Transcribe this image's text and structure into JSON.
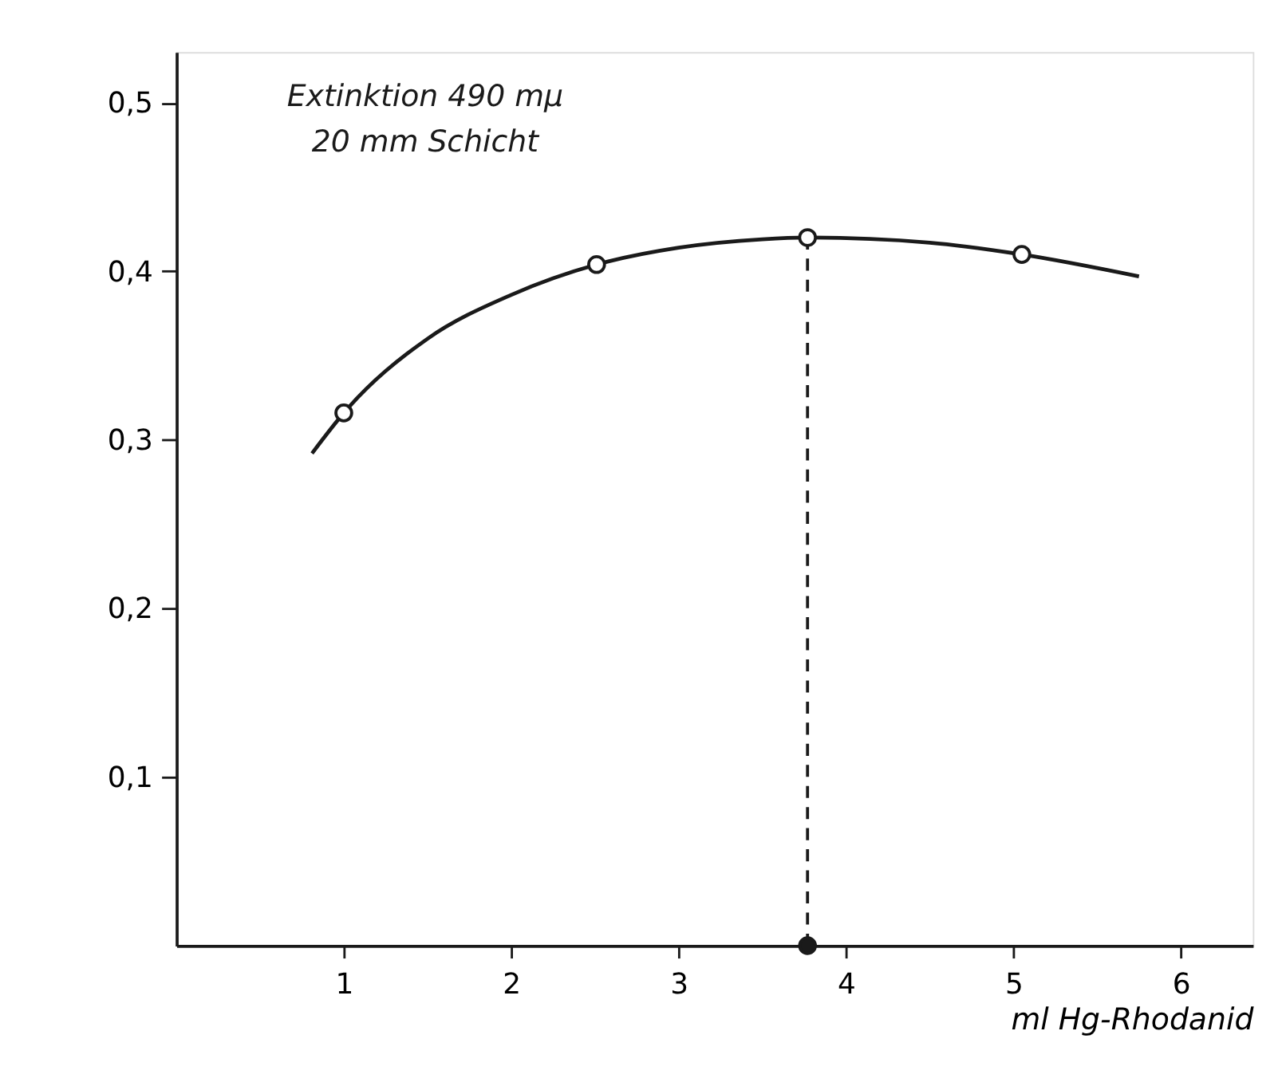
{
  "chart_data": {
    "type": "line",
    "ylabel": "Extinktion 490 mµ\n20 mm Schicht",
    "xlabel": "ml Hg-Rhodanid",
    "series": [
      {
        "color": "#1a1a1a",
        "marker": "none",
        "x": [
          0.81,
          1.0,
          1.5,
          2.0,
          2.51,
          3.0,
          3.5,
          3.77,
          4.5,
          5.05,
          5.75
        ],
        "values": [
          0.292,
          0.316,
          0.36,
          0.386,
          0.404,
          0.414,
          0.419,
          0.42,
          0.417,
          0.41,
          0.397
        ]
      },
      {
        "type": "scatter",
        "color": "#ffffff",
        "marker": "circle",
        "x": [
          1.0,
          2.51,
          3.77,
          5.05
        ],
        "values": [
          0.316,
          0.404,
          0.42,
          0.41
        ]
      },
      {
        "type": "scatter",
        "color": "#1a1a1a",
        "marker": "circle",
        "x": [
          3.77
        ],
        "values": [
          0
        ]
      }
    ],
    "ref_lines": [
      {
        "axis": "x",
        "value": 3.77,
        "line_style": "dashed",
        "color": "#1a1a1a"
      }
    ],
    "xlim": [
      0,
      6.43
    ],
    "ylim": [
      0,
      0.53
    ],
    "xticks": [
      1,
      2,
      3,
      4,
      5,
      6
    ],
    "yticks": [
      {
        "value": 0.1,
        "label": "0,1"
      },
      {
        "value": 0.2,
        "label": "0,2"
      },
      {
        "value": 0.3,
        "label": "0,3"
      },
      {
        "value": 0.4,
        "label": "0,4"
      },
      {
        "value": 0.5,
        "label": "0,5"
      }
    ],
    "grid": false
  }
}
